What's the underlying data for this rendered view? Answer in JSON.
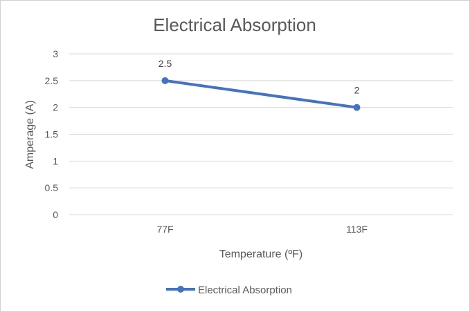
{
  "chart_data": {
    "type": "line",
    "title": "Electrical Absorption",
    "xlabel": "Temperature (ºF)",
    "ylabel": "Amperage (A)",
    "categories": [
      "77F",
      "113F"
    ],
    "series": [
      {
        "name": "Electrical Absorption",
        "values": [
          2.5,
          2
        ],
        "color": "#4472C4"
      }
    ],
    "data_labels": [
      "2.5",
      "2"
    ],
    "ylim": [
      0,
      3
    ],
    "yticks": [
      "0",
      "0.5",
      "1",
      "1.5",
      "2",
      "2.5",
      "3"
    ],
    "grid": true,
    "legend_position": "bottom"
  }
}
